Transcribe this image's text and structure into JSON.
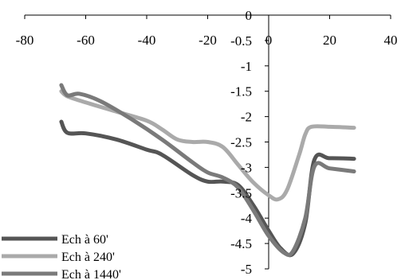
{
  "chart_data": {
    "type": "line",
    "title": "",
    "xlabel": "",
    "ylabel": "",
    "xlim": [
      -80,
      40
    ],
    "ylim": [
      -5,
      0
    ],
    "x_ticks": [
      "-80",
      "-60",
      "-40",
      "-20",
      "0",
      "20",
      "40"
    ],
    "y_ticks": [
      "0",
      "-0.5",
      "-1",
      "-1.5",
      "-2",
      "-2.5",
      "-3",
      "-3.5",
      "-4",
      "-4.5",
      "-5"
    ],
    "x_tick_values": [
      -80,
      -60,
      -40,
      -20,
      0,
      20,
      40
    ],
    "y_tick_values": [
      0,
      -0.5,
      -1,
      -1.5,
      -2,
      -2.5,
      -3,
      -3.5,
      -4,
      -4.5,
      -5
    ],
    "grid": false,
    "legend_position": "bottom-left",
    "series": [
      {
        "name": "Ech à 60'",
        "color": "#555555",
        "x": [
          -68,
          -66,
          -60,
          -50,
          -40,
          -35,
          -25,
          -20,
          -15,
          -10,
          -5,
          0,
          4,
          8,
          12,
          15,
          20,
          28
        ],
        "y": [
          -2.1,
          -2.32,
          -2.33,
          -2.45,
          -2.65,
          -2.75,
          -3.15,
          -3.28,
          -3.28,
          -3.35,
          -3.75,
          -4.25,
          -4.6,
          -4.7,
          -4.1,
          -2.85,
          -2.82,
          -2.83
        ]
      },
      {
        "name": "Ech à 240'",
        "color": "#aaaaaa",
        "x": [
          -68,
          -66,
          -60,
          -50,
          -40,
          -35,
          -30,
          -25,
          -20,
          -15,
          -10,
          -5,
          0,
          3,
          6,
          10,
          12,
          14,
          20,
          28
        ],
        "y": [
          -1.5,
          -1.6,
          -1.72,
          -1.9,
          -2.08,
          -2.25,
          -2.45,
          -2.5,
          -2.5,
          -2.6,
          -2.95,
          -3.3,
          -3.55,
          -3.63,
          -3.45,
          -2.75,
          -2.35,
          -2.2,
          -2.2,
          -2.22
        ]
      },
      {
        "name": "Ech à 1440'",
        "color": "#7a7a7a",
        "x": [
          -68,
          -66,
          -62,
          -55,
          -45,
          -35,
          -25,
          -20,
          -15,
          -10,
          -5,
          0,
          5,
          8,
          12,
          15,
          20,
          28
        ],
        "y": [
          -1.38,
          -1.58,
          -1.55,
          -1.7,
          -2.05,
          -2.45,
          -2.9,
          -3.1,
          -3.2,
          -3.4,
          -3.85,
          -4.35,
          -4.68,
          -4.65,
          -4.0,
          -2.98,
          -3.02,
          -3.08
        ]
      }
    ]
  }
}
